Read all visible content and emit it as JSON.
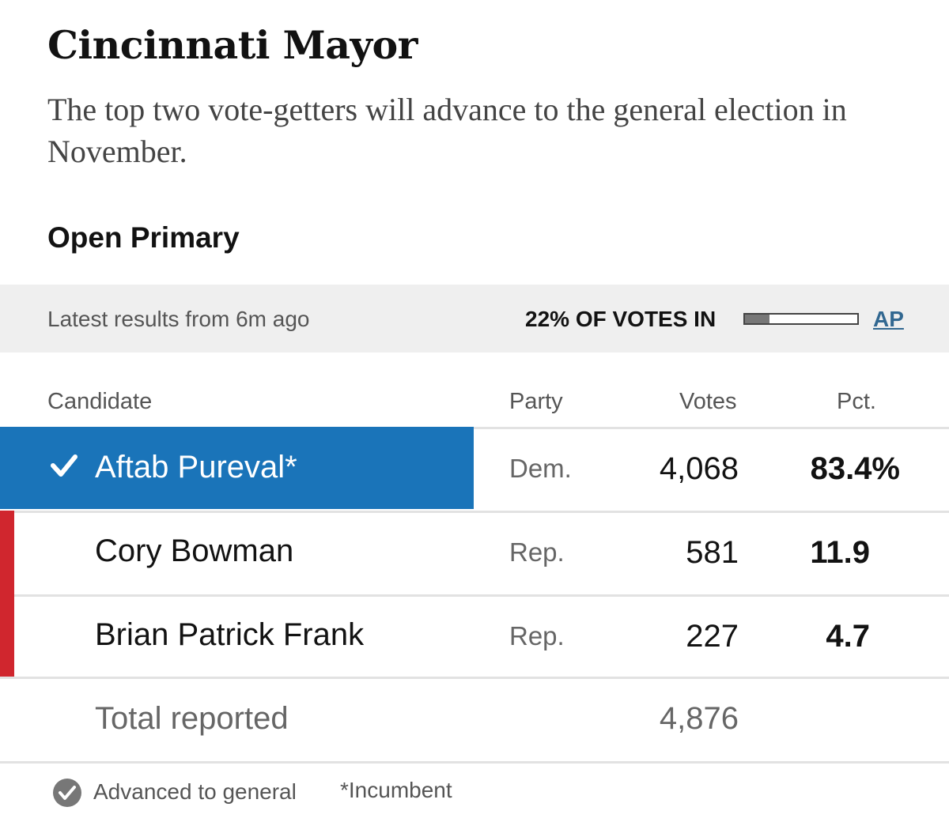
{
  "race": {
    "title": "Cincinnati Mayor",
    "subtitle": "The top two vote-getters will advance to the general election in November.",
    "type": "Open Primary"
  },
  "status": {
    "latest": "Latest results from 6m ago",
    "votes_in_label": "22% OF VOTES IN",
    "votes_in_pct": 22,
    "source": "AP"
  },
  "columns": {
    "candidate": "Candidate",
    "party": "Party",
    "votes": "Votes",
    "pct": "Pct."
  },
  "candidates": [
    {
      "name": "Aftab Pureval*",
      "party": "Dem.",
      "votes": "4,068",
      "pct": "83.4%",
      "winner": true
    },
    {
      "name": "Cory Bowman",
      "party": "Rep.",
      "votes": "581",
      "pct": "11.9",
      "winner": false
    },
    {
      "name": "Brian Patrick Frank",
      "party": "Rep.",
      "votes": "227",
      "pct": "4.7",
      "winner": false
    }
  ],
  "total": {
    "label": "Total reported",
    "votes": "4,876"
  },
  "legend": {
    "advanced": "Advanced to general",
    "incumbent": "*Incumbent"
  },
  "colors": {
    "winner_dem": "#1a74b9",
    "republican": "#d0262e",
    "source_link": "#326891"
  }
}
